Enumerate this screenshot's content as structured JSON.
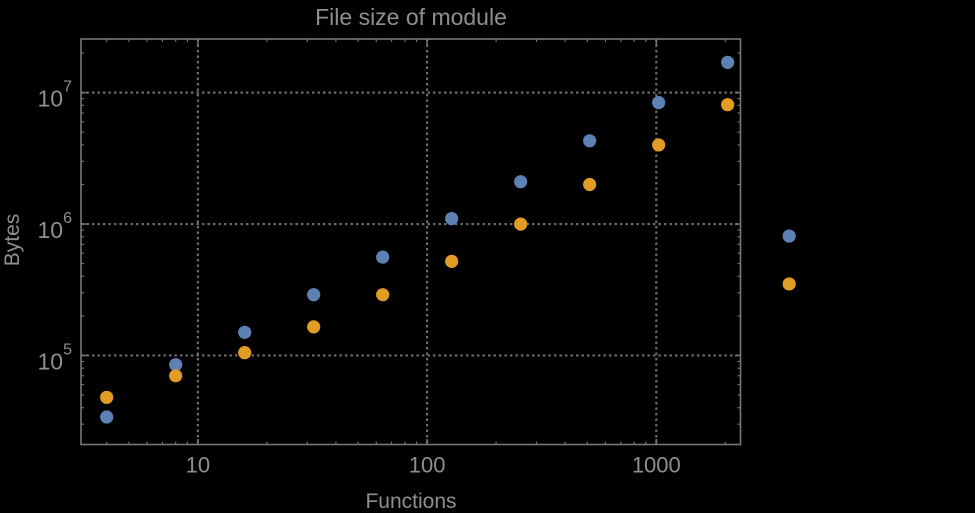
{
  "colors": {
    "background": "#000000",
    "frame": "#787878",
    "grid": "#6f6f6f",
    "text": "#8f8f8f",
    "series_blue": "#5e81b5",
    "series_orange": "#e19c24"
  },
  "chart_data": {
    "type": "scatter",
    "title": "File size of module",
    "xlabel": "Functions",
    "ylabel": "Bytes",
    "x_scale": "log",
    "y_scale": "log",
    "xlim": [
      3.09,
      2330
    ],
    "ylim": [
      21000,
      25600000
    ],
    "grid": "dotted gray lines at decades, frame ticks on all four edges, no legend",
    "x_major_ticks": [
      10,
      100,
      1000
    ],
    "x_tick_labels": [
      "10",
      "100",
      "1000"
    ],
    "y_major_ticks": [
      100000,
      1000000,
      10000000
    ],
    "y_tick_label_base": "10",
    "y_tick_exponents": [
      "5",
      "6",
      "7"
    ],
    "marker_radius": 6.6,
    "clip_points": false,
    "x": [
      4,
      8,
      16,
      32,
      64,
      128,
      256,
      512,
      1024,
      2048,
      3800
    ],
    "series": [
      {
        "name": "blue-series",
        "color": "#5e81b5",
        "values": [
          34000,
          85000,
          150000,
          290000,
          560000,
          1100000,
          2100000,
          4300000,
          8400000,
          17000000,
          810000
        ]
      },
      {
        "name": "orange-series",
        "color": "#e19c24",
        "values": [
          48000,
          70000,
          105000,
          165000,
          290000,
          520000,
          1000000,
          2000000,
          4000000,
          8100000,
          350000
        ]
      }
    ]
  }
}
